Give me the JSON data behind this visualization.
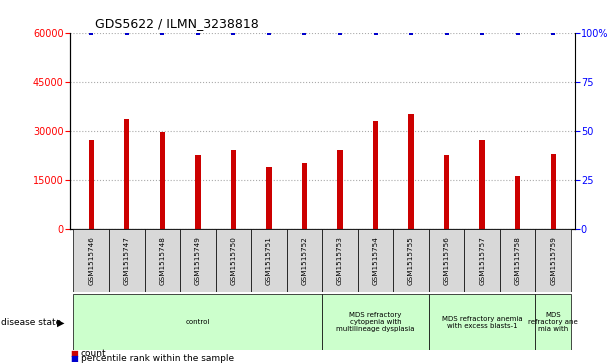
{
  "title": "GDS5622 / ILMN_3238818",
  "samples": [
    "GSM1515746",
    "GSM1515747",
    "GSM1515748",
    "GSM1515749",
    "GSM1515750",
    "GSM1515751",
    "GSM1515752",
    "GSM1515753",
    "GSM1515754",
    "GSM1515755",
    "GSM1515756",
    "GSM1515757",
    "GSM1515758",
    "GSM1515759"
  ],
  "counts": [
    27000,
    33500,
    29500,
    22500,
    24000,
    19000,
    20000,
    24000,
    33000,
    35000,
    22500,
    27000,
    16000,
    23000
  ],
  "percentile_ranks": [
    100,
    100,
    100,
    100,
    100,
    100,
    100,
    100,
    100,
    100,
    100,
    100,
    100,
    100
  ],
  "ylim_left": [
    0,
    60000
  ],
  "ylim_right": [
    0,
    100
  ],
  "yticks_left": [
    0,
    15000,
    30000,
    45000,
    60000
  ],
  "ytick_labels_left": [
    "0",
    "15000",
    "30000",
    "45000",
    "60000"
  ],
  "yticks_right": [
    0,
    25,
    50,
    75,
    100
  ],
  "ytick_labels_right": [
    "0",
    "25",
    "50",
    "75",
    "100%"
  ],
  "bar_color": "#cc0000",
  "dot_color": "#0000cc",
  "groups": [
    {
      "label": "control",
      "start": 0,
      "end": 7,
      "color": "#ccffcc"
    },
    {
      "label": "MDS refractory\ncytopenia with\nmultilineage dysplasia",
      "start": 7,
      "end": 10,
      "color": "#ccffcc"
    },
    {
      "label": "MDS refractory anemia\nwith excess blasts-1",
      "start": 10,
      "end": 13,
      "color": "#ccffcc"
    },
    {
      "label": "MDS\nrefractory ane\nmia with",
      "start": 13,
      "end": 14,
      "color": "#ccffcc"
    }
  ],
  "disease_state_label": "disease state",
  "legend_count_label": "count",
  "legend_pct_label": "percentile rank within the sample",
  "background_color": "#ffffff",
  "grid_color": "#aaaaaa",
  "bar_width": 0.15
}
